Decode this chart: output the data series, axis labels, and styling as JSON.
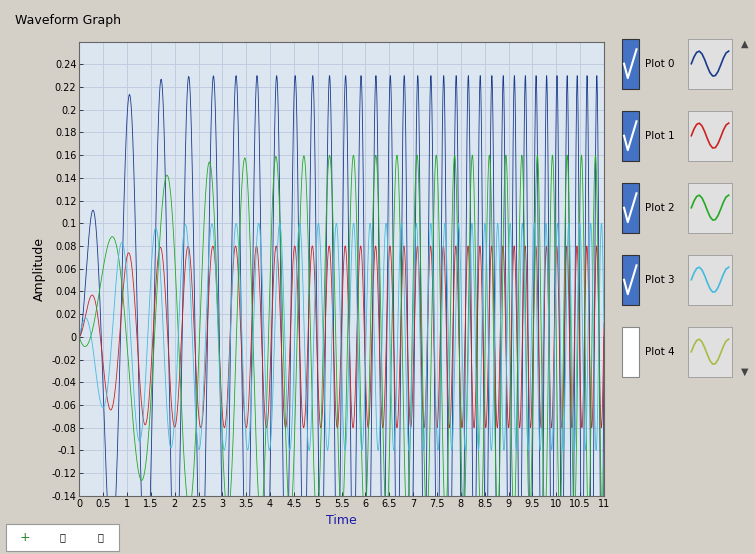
{
  "title": "Waveform Graph",
  "xlabel": "Time",
  "ylabel": "Amplitude",
  "xlim": [
    0,
    11
  ],
  "ylim": [
    -0.14,
    0.26
  ],
  "xticks": [
    0,
    0.5,
    1,
    1.5,
    2,
    2.5,
    3,
    3.5,
    4,
    4.5,
    5,
    5.5,
    6,
    6.5,
    7,
    7.5,
    8,
    8.5,
    9,
    9.5,
    10,
    10.5,
    11
  ],
  "yticks": [
    -0.14,
    -0.12,
    -0.1,
    -0.08,
    -0.06,
    -0.04,
    -0.02,
    0,
    0.02,
    0.04,
    0.06,
    0.08,
    0.1,
    0.12,
    0.14,
    0.16,
    0.18,
    0.2,
    0.22,
    0.24
  ],
  "bg_color": "#dce6f1",
  "outer_bg": "#d4d0c8",
  "grid_color": "#c0cce0",
  "plots": [
    {
      "label": "Plot 0",
      "color": "#1a3a8c",
      "checked": true
    },
    {
      "label": "Plot 1",
      "color": "#cc2222",
      "checked": true
    },
    {
      "label": "Plot 2",
      "color": "#22aa22",
      "checked": true
    },
    {
      "label": "Plot 3",
      "color": "#44bbdd",
      "checked": true
    },
    {
      "label": "Plot 4",
      "color": "#aabb44",
      "checked": false
    }
  ],
  "checkbox_color": "#4472c4",
  "toolbar_bg": "#d4d0c8"
}
